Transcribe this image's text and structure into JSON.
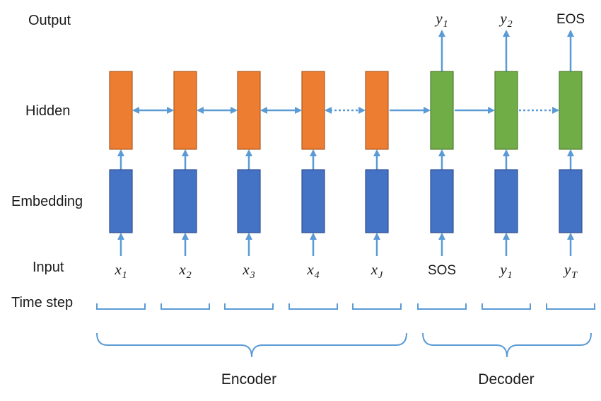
{
  "row_labels": {
    "output": "Output",
    "hidden": "Hidden",
    "embedding": "Embedding",
    "input": "Input",
    "time_step": "Time step"
  },
  "inputs": [
    {
      "base": "x",
      "sub": "1",
      "style": "math"
    },
    {
      "base": "x",
      "sub": "2",
      "style": "math"
    },
    {
      "base": "x",
      "sub": "3",
      "style": "math"
    },
    {
      "base": "x",
      "sub": "4",
      "style": "math"
    },
    {
      "base": "x",
      "sub": "J",
      "style": "math"
    },
    {
      "base": "SOS",
      "sub": "",
      "style": "plain"
    },
    {
      "base": "y",
      "sub": "1",
      "style": "math"
    },
    {
      "base": "y",
      "sub": "T",
      "style": "math"
    }
  ],
  "outputs": [
    {
      "base": "y",
      "sub": "1",
      "style": "math"
    },
    {
      "base": "y",
      "sub": "2",
      "style": "math"
    },
    {
      "base": "EOS",
      "sub": "",
      "style": "plain"
    }
  ],
  "groups": {
    "encoder": "Encoder",
    "decoder": "Decoder"
  },
  "colors": {
    "encoder_hidden_fill": "#ed7d31",
    "encoder_hidden_stroke": "#ae5a21",
    "decoder_hidden_fill": "#70ad47",
    "decoder_hidden_stroke": "#507e32",
    "embedding_fill": "#4472c4",
    "embedding_stroke": "#2f528f",
    "arrow": "#5b9bd5"
  }
}
